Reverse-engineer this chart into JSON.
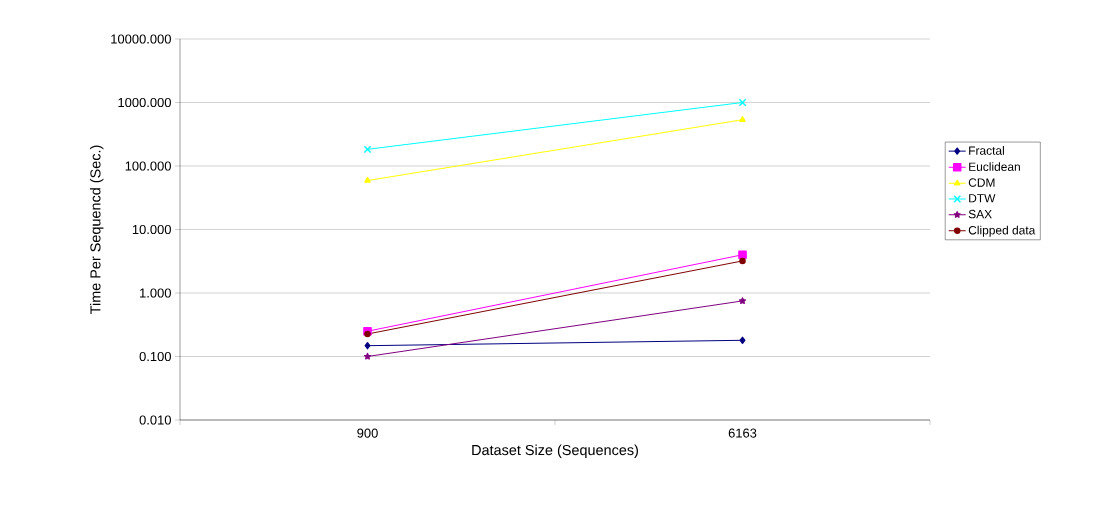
{
  "chart_data": {
    "type": "line",
    "xlabel": "Dataset Size (Sequences)",
    "ylabel": "Time Per Sequencd (Sec.)",
    "categories": [
      "900",
      "6163"
    ],
    "log": "y",
    "ylim": [
      0.01,
      10000
    ],
    "yticks": [
      {
        "value": 0.01,
        "label": "0.010"
      },
      {
        "value": 0.1,
        "label": "0.100"
      },
      {
        "value": 1,
        "label": "1.000"
      },
      {
        "value": 10,
        "label": "10.000"
      },
      {
        "value": 100,
        "label": "100.000"
      },
      {
        "value": 1000,
        "label": "1000.000"
      },
      {
        "value": 10000,
        "label": "10000.000"
      }
    ],
    "grid": "y",
    "legend": "right",
    "series": [
      {
        "name": "Fractal",
        "color": "#000080",
        "marker": "diamond",
        "values": [
          0.148,
          0.18
        ]
      },
      {
        "name": "Euclidean",
        "color": "#ff00ff",
        "marker": "square",
        "values": [
          0.25,
          4.0
        ]
      },
      {
        "name": "CDM",
        "color": "#ffff00",
        "marker": "triangle",
        "values": [
          59,
          535
        ]
      },
      {
        "name": "DTW",
        "color": "#00ffff",
        "marker": "cross",
        "values": [
          183,
          1000
        ]
      },
      {
        "name": "SAX",
        "color": "#800080",
        "marker": "star",
        "values": [
          0.1,
          0.75
        ]
      },
      {
        "name": "Clipped data",
        "color": "#800000",
        "marker": "circle",
        "values": [
          0.226,
          3.2
        ]
      }
    ]
  }
}
